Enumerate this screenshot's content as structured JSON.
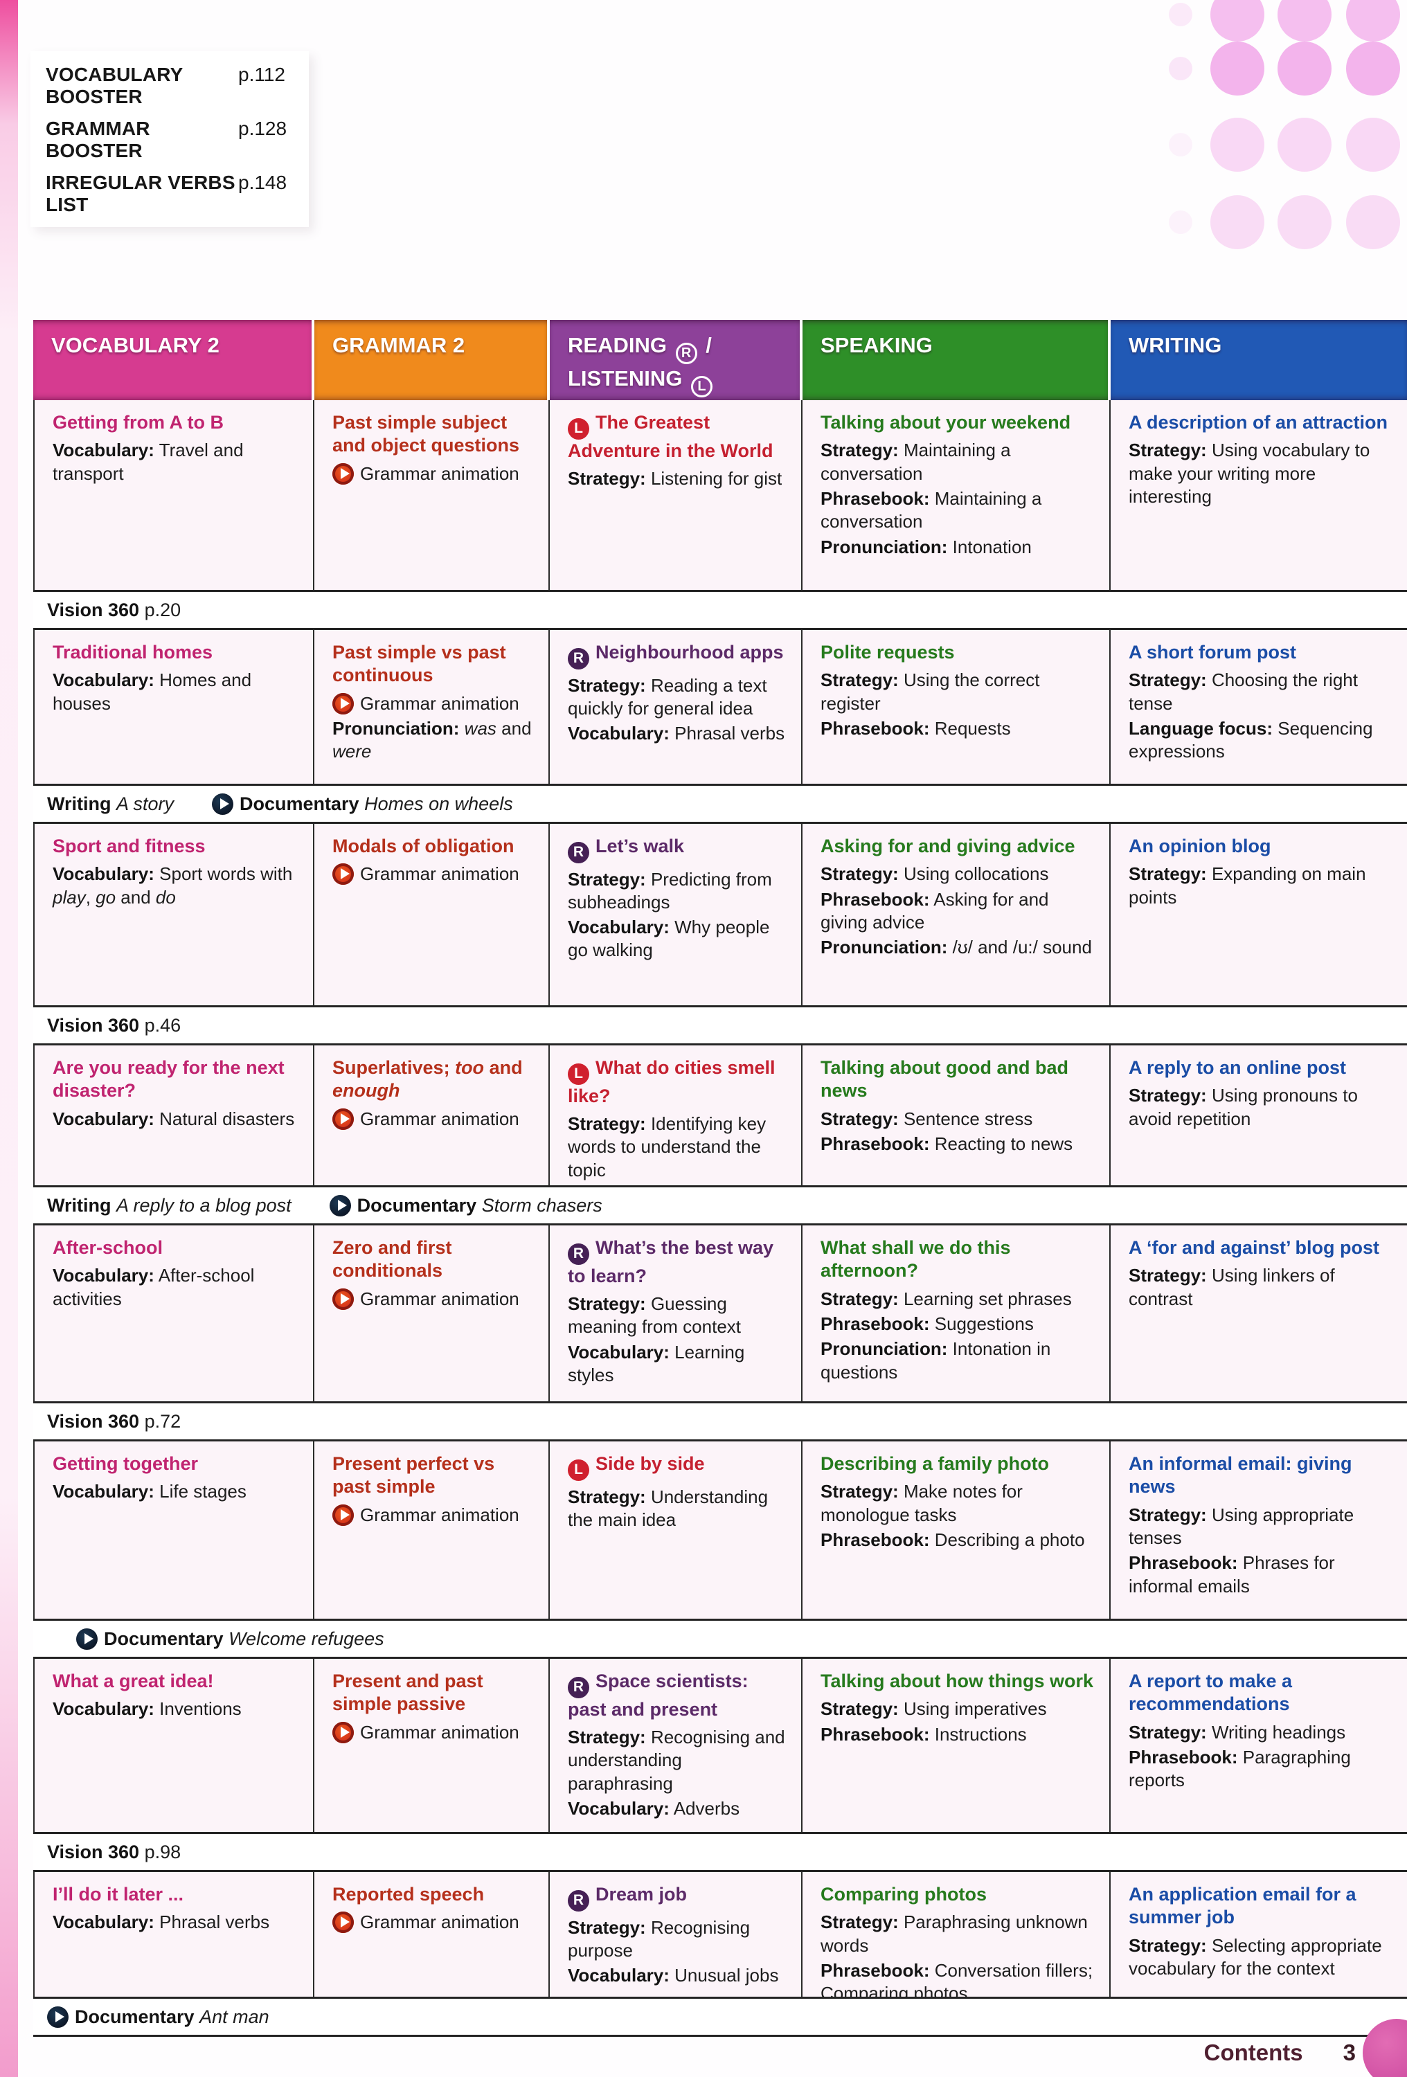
{
  "boosters": {
    "items": [
      {
        "label": "VOCABULARY BOOSTER",
        "page": "p.112"
      },
      {
        "label": "GRAMMAR BOOSTER",
        "page": "p.128"
      },
      {
        "label": "IRREGULAR VERBS LIST",
        "page": "p.148"
      }
    ]
  },
  "table": {
    "columns": [
      {
        "key": "vocabulary",
        "label": "VOCABULARY 2",
        "header_color": "#d63b90",
        "title_color": "#c02470"
      },
      {
        "key": "grammar",
        "label": "GRAMMAR 2",
        "header_color": "#f08a1c",
        "title_color": "#b5301c"
      },
      {
        "key": "reading_listening",
        "label": "READING ® / LISTENING Ⓛ",
        "lines": [
          {
            "text": "READING",
            "icon": "R",
            "after": " /"
          },
          {
            "text": "LISTENING",
            "icon": "L",
            "after": ""
          }
        ],
        "header_color": "#8d4199",
        "title_color_reading": "#5c2a68",
        "title_color_listening": "#c52030"
      },
      {
        "key": "speaking",
        "label": "SPEAKING",
        "header_color": "#2e8f28",
        "title_color": "#267a1d"
      },
      {
        "key": "writing",
        "label": "WRITING",
        "header_color": "#2159b5",
        "title_color": "#1b4da6"
      }
    ],
    "icon_colors": {
      "L": "#d0202e",
      "R": "#452055"
    },
    "grammar_animation_label": "Grammar animation",
    "units": [
      {
        "vocabulary": {
          "title": "Getting from A to B",
          "lines": [
            {
              "label": "Vocabulary:",
              "text": "Travel and transport"
            }
          ]
        },
        "grammar": {
          "title": "Past simple subject and object questions",
          "animation": true,
          "lines": []
        },
        "reading_listening": {
          "icon": "L",
          "title": "The Greatest Adventure in the World",
          "lines": [
            {
              "label": "Strategy:",
              "text": "Listening for gist"
            }
          ]
        },
        "speaking": {
          "title": "Talking about your weekend",
          "lines": [
            {
              "label": "Strategy:",
              "text": "Maintaining a conversation"
            },
            {
              "label": "Phrasebook:",
              "text": "Maintaining a conversation"
            },
            {
              "label": "Pronunciation:",
              "text": "Intonation"
            }
          ]
        },
        "writing": {
          "title": "A description of an attraction",
          "lines": [
            {
              "label": "Strategy:",
              "text": "Using vocabulary to make your writing more interesting"
            }
          ]
        }
      },
      {
        "vocabulary": {
          "title": "Traditional homes",
          "lines": [
            {
              "label": "Vocabulary:",
              "text": "Homes and houses"
            }
          ]
        },
        "grammar": {
          "title": "Past simple vs past continuous",
          "animation": true,
          "lines": [
            {
              "label": "Pronunciation:",
              "text": "*was* and *were*"
            }
          ]
        },
        "reading_listening": {
          "icon": "R",
          "title": "Neighbourhood apps",
          "lines": [
            {
              "label": "Strategy:",
              "text": "Reading a text quickly for general idea"
            },
            {
              "label": "Vocabulary:",
              "text": "Phrasal verbs"
            }
          ]
        },
        "speaking": {
          "title": "Polite requests",
          "lines": [
            {
              "label": "Strategy:",
              "text": "Using the correct register"
            },
            {
              "label": "Phrasebook:",
              "text": "Requests"
            }
          ]
        },
        "writing": {
          "title": "A short forum post",
          "lines": [
            {
              "label": "Strategy:",
              "text": "Choosing the right tense"
            },
            {
              "label": "Language focus:",
              "text": "Sequencing expressions"
            }
          ]
        }
      },
      {
        "vocabulary": {
          "title": "Sport and fitness",
          "lines": [
            {
              "label": "Vocabulary:",
              "text": "Sport words with *play*, *go* and *do*"
            }
          ]
        },
        "grammar": {
          "title": "Modals of obligation",
          "animation": true,
          "lines": []
        },
        "reading_listening": {
          "icon": "R",
          "title": "Let’s walk",
          "lines": [
            {
              "label": "Strategy:",
              "text": "Predicting from subheadings"
            },
            {
              "label": "Vocabulary:",
              "text": "Why people go walking"
            }
          ]
        },
        "speaking": {
          "title": "Asking for and giving advice",
          "lines": [
            {
              "label": "Strategy:",
              "text": "Using collocations"
            },
            {
              "label": "Phrasebook:",
              "text": "Asking for and giving advice"
            },
            {
              "label": "Pronunciation:",
              "text": "/ʊ/ and /u:/ sound"
            }
          ]
        },
        "writing": {
          "title": "An opinion blog",
          "lines": [
            {
              "label": "Strategy:",
              "text": "Expanding on main points"
            }
          ]
        }
      },
      {
        "vocabulary": {
          "title": "Are you ready for the next disaster?",
          "lines": [
            {
              "label": "Vocabulary:",
              "text": "Natural disasters"
            }
          ]
        },
        "grammar": {
          "title": "Superlatives; *too* and *enough*",
          "animation": true,
          "lines": []
        },
        "reading_listening": {
          "icon": "L",
          "title": "What do cities smell like?",
          "lines": [
            {
              "label": "Strategy:",
              "text": "Identifying key words to understand the topic"
            }
          ]
        },
        "speaking": {
          "title": "Talking about good and bad news",
          "lines": [
            {
              "label": "Strategy:",
              "text": "Sentence stress"
            },
            {
              "label": "Phrasebook:",
              "text": "Reacting to news"
            }
          ]
        },
        "writing": {
          "title": "A reply to an online post",
          "lines": [
            {
              "label": "Strategy:",
              "text": "Using pronouns to avoid repetition"
            }
          ]
        }
      },
      {
        "vocabulary": {
          "title": "After-school",
          "lines": [
            {
              "label": "Vocabulary:",
              "text": "After-school activities"
            }
          ]
        },
        "grammar": {
          "title": "Zero and first conditionals",
          "animation": true,
          "lines": []
        },
        "reading_listening": {
          "icon": "R",
          "title": "What’s the best way to learn?",
          "lines": [
            {
              "label": "Strategy:",
              "text": "Guessing meaning from context"
            },
            {
              "label": "Vocabulary:",
              "text": "Learning styles"
            }
          ]
        },
        "speaking": {
          "title": "What shall we do this afternoon?",
          "lines": [
            {
              "label": "Strategy:",
              "text": "Learning set phrases"
            },
            {
              "label": "Phrasebook:",
              "text": "Suggestions"
            },
            {
              "label": "Pronunciation:",
              "text": "Intonation in questions"
            }
          ]
        },
        "writing": {
          "title": "A ‘for and against’ blog post",
          "lines": [
            {
              "label": "Strategy:",
              "text": "Using linkers of contrast"
            }
          ]
        }
      },
      {
        "vocabulary": {
          "title": "Getting together",
          "lines": [
            {
              "label": "Vocabulary:",
              "text": "Life stages"
            }
          ]
        },
        "grammar": {
          "title": "Present perfect vs past simple",
          "animation": true,
          "lines": []
        },
        "reading_listening": {
          "icon": "L",
          "title": "Side by side",
          "lines": [
            {
              "label": "Strategy:",
              "text": "Understanding the main idea"
            }
          ]
        },
        "speaking": {
          "title": "Describing a family photo",
          "lines": [
            {
              "label": "Strategy:",
              "text": "Make notes for monologue tasks"
            },
            {
              "label": "Phrasebook:",
              "text": "Describing a photo"
            }
          ]
        },
        "writing": {
          "title": "An informal email: giving news",
          "lines": [
            {
              "label": "Strategy:",
              "text": "Using appropriate tenses"
            },
            {
              "label": "Phrasebook:",
              "text": "Phrases for informal emails"
            }
          ]
        }
      },
      {
        "vocabulary": {
          "title": "What a great idea!",
          "lines": [
            {
              "label": "Vocabulary:",
              "text": "Inventions"
            }
          ]
        },
        "grammar": {
          "title": "Present and past simple passive",
          "animation": true,
          "lines": []
        },
        "reading_listening": {
          "icon": "R",
          "title": "Space scientists: past and present",
          "lines": [
            {
              "label": "Strategy:",
              "text": "Recognising and understanding paraphrasing"
            },
            {
              "label": "Vocabulary:",
              "text": "Adverbs"
            }
          ]
        },
        "speaking": {
          "title": "Talking about how things work",
          "lines": [
            {
              "label": "Strategy:",
              "text": "Using imperatives"
            },
            {
              "label": "Phrasebook:",
              "text": "Instructions"
            }
          ]
        },
        "writing": {
          "title": "A report to make a recommendations",
          "lines": [
            {
              "label": "Strategy:",
              "text": "Writing headings"
            },
            {
              "label": "Phrasebook:",
              "text": "Paragraphing reports"
            }
          ]
        }
      },
      {
        "vocabulary": {
          "title": "I’ll do it later ...",
          "lines": [
            {
              "label": "Vocabulary:",
              "text": "Phrasal verbs"
            }
          ]
        },
        "grammar": {
          "title": "Reported speech",
          "animation": true,
          "lines": []
        },
        "reading_listening": {
          "icon": "R",
          "title": "Dream job",
          "lines": [
            {
              "label": "Strategy:",
              "text": "Recognising purpose"
            },
            {
              "label": "Vocabulary:",
              "text": "Unusual jobs"
            }
          ]
        },
        "speaking": {
          "title": "Comparing photos",
          "lines": [
            {
              "label": "Strategy:",
              "text": "Paraphrasing unknown words"
            },
            {
              "label": "Phrasebook:",
              "text": "Conversation fillers; Comparing photos"
            }
          ]
        },
        "writing": {
          "title": "An application email for a summer job",
          "lines": [
            {
              "label": "Strategy:",
              "text": "Selecting appropriate vocabulary for the context"
            }
          ]
        }
      }
    ],
    "bands": [
      {
        "segments": [
          {
            "bold": "Vision 360",
            "text": "p.20"
          }
        ]
      },
      {
        "segments": [
          {
            "bold": "Writing",
            "italic": "A story"
          },
          {
            "icon": "documentary-play",
            "bold": "Documentary",
            "italic": "Homes on wheels"
          }
        ]
      },
      {
        "segments": [
          {
            "bold": "Vision 360",
            "text": "p.46"
          }
        ]
      },
      {
        "segments": [
          {
            "bold": "Writing",
            "italic": "A reply to a blog post"
          },
          {
            "icon": "documentary-play",
            "bold": "Documentary",
            "italic": "Storm chasers"
          }
        ]
      },
      {
        "segments": [
          {
            "bold": "Vision 360",
            "text": "p.72"
          }
        ]
      },
      {
        "indent": true,
        "segments": [
          {
            "icon": "documentary-play",
            "bold": "Documentary",
            "italic": "Welcome refugees"
          }
        ]
      },
      {
        "segments": [
          {
            "bold": "Vision 360",
            "text": "p.98"
          }
        ]
      },
      {
        "segments": [
          {
            "icon": "documentary-play",
            "bold": "Documentary",
            "italic": "Ant man"
          }
        ]
      }
    ]
  },
  "footer": {
    "label": "Contents",
    "page_number": "3"
  },
  "decor": {
    "dot_color": "#f3b4ec",
    "edge_color": "#ee4f9f",
    "corner_circle_color": "#c8439b"
  }
}
